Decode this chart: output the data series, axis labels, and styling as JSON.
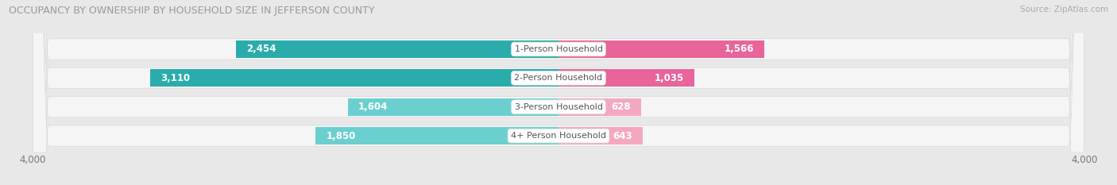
{
  "title": "OCCUPANCY BY OWNERSHIP BY HOUSEHOLD SIZE IN JEFFERSON COUNTY",
  "source": "Source: ZipAtlas.com",
  "categories": [
    "1-Person Household",
    "2-Person Household",
    "3-Person Household",
    "4+ Person Household"
  ],
  "owner_values": [
    2454,
    3110,
    1604,
    1850
  ],
  "renter_values": [
    1566,
    1035,
    628,
    643
  ],
  "owner_color_dark": "#2AACAC",
  "owner_color_light": "#6BCFCF",
  "renter_color_dark": "#E8649A",
  "renter_color_light": "#F4A8C0",
  "axis_max": 4000,
  "bar_height": 0.72,
  "background_color": "#e8e8e8",
  "row_bg_color": "#f5f5f5",
  "owner_label_threshold": 500,
  "renter_label_threshold": 300
}
